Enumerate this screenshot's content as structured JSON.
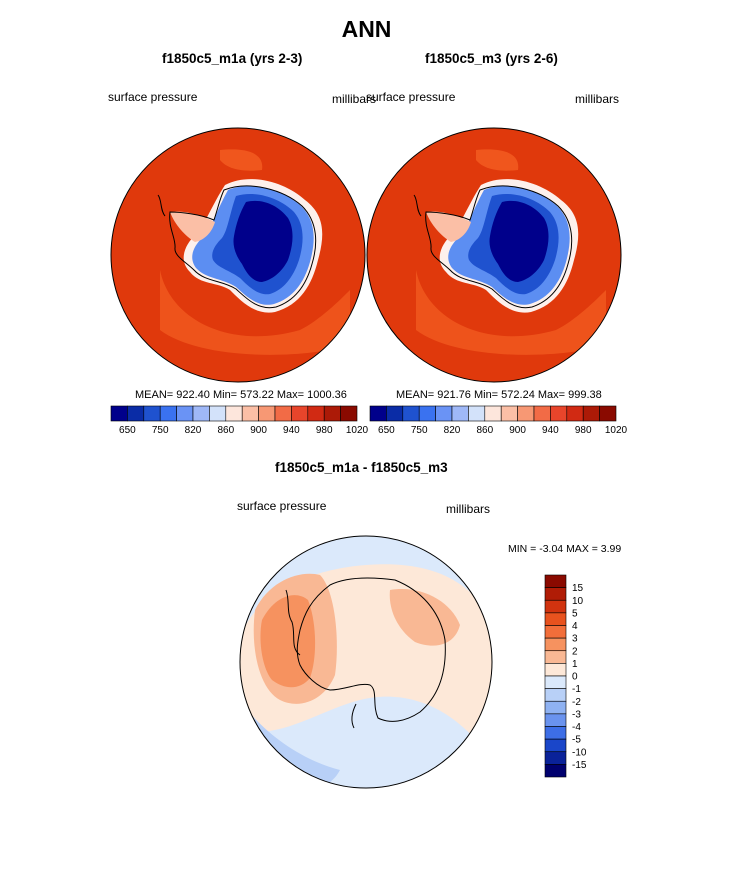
{
  "page_title": "ANN",
  "chart_data": [
    {
      "type": "heatmap",
      "title": "f1850c5_m1a (yrs 2-3)",
      "variable": "surface pressure",
      "units": "millibars",
      "stats_text": "MEAN= 922.40  Min= 573.22  Max= 1000.36",
      "stats": {
        "mean": 922.4,
        "min": 573.22,
        "max": 1000.36
      },
      "colorbar": {
        "levels": [
          "650",
          "750",
          "820",
          "860",
          "900",
          "940",
          "980",
          "1020"
        ],
        "colors": [
          "#00008b",
          "#0a2ca6",
          "#1f52cf",
          "#3a72f0",
          "#6a93f5",
          "#9fb8f7",
          "#d3e2fa",
          "#fde6dc",
          "#fbbfa6",
          "#f79874",
          "#f26b46",
          "#e8452b",
          "#d12a13",
          "#ac1a07",
          "#8a0a00"
        ]
      },
      "projection": "south-polar-stereographic"
    },
    {
      "type": "heatmap",
      "title": "f1850c5_m3 (yrs 2-6)",
      "variable": "surface pressure",
      "units": "millibars",
      "stats_text": "MEAN= 921.76  Min= 572.24  Max= 999.38",
      "stats": {
        "mean": 921.76,
        "min": 572.24,
        "max": 999.38
      },
      "colorbar": {
        "levels": [
          "650",
          "750",
          "820",
          "860",
          "900",
          "940",
          "980",
          "1020"
        ],
        "colors": [
          "#00008b",
          "#0a2ca6",
          "#1f52cf",
          "#3a72f0",
          "#6a93f5",
          "#9fb8f7",
          "#d3e2fa",
          "#fde6dc",
          "#fbbfa6",
          "#f79874",
          "#f26b46",
          "#e8452b",
          "#d12a13",
          "#ac1a07",
          "#8a0a00"
        ]
      },
      "projection": "south-polar-stereographic"
    },
    {
      "type": "heatmap",
      "title": "f1850c5_m1a - f1850c5_m3",
      "variable": "surface pressure",
      "units": "millibars",
      "stats_text": "MIN =  -3.04 MAX =   3.99",
      "stats": {
        "min": -3.04,
        "max": 3.99
      },
      "colorbar": {
        "levels": [
          "15",
          "10",
          "5",
          "4",
          "3",
          "2",
          "1",
          "0",
          "-1",
          "-2",
          "-3",
          "-4",
          "-5",
          "-10",
          "-15"
        ],
        "colors": [
          "#8a0a00",
          "#b01c06",
          "#d1330f",
          "#e8521e",
          "#f26e3a",
          "#f6925f",
          "#f9b894",
          "#fde8d8",
          "#dbe9fb",
          "#b8d0f7",
          "#8fb2f2",
          "#6a93ee",
          "#3d6ee6",
          "#1a46c9",
          "#0a2299",
          "#00006e"
        ]
      },
      "projection": "south-polar-stereographic"
    }
  ]
}
